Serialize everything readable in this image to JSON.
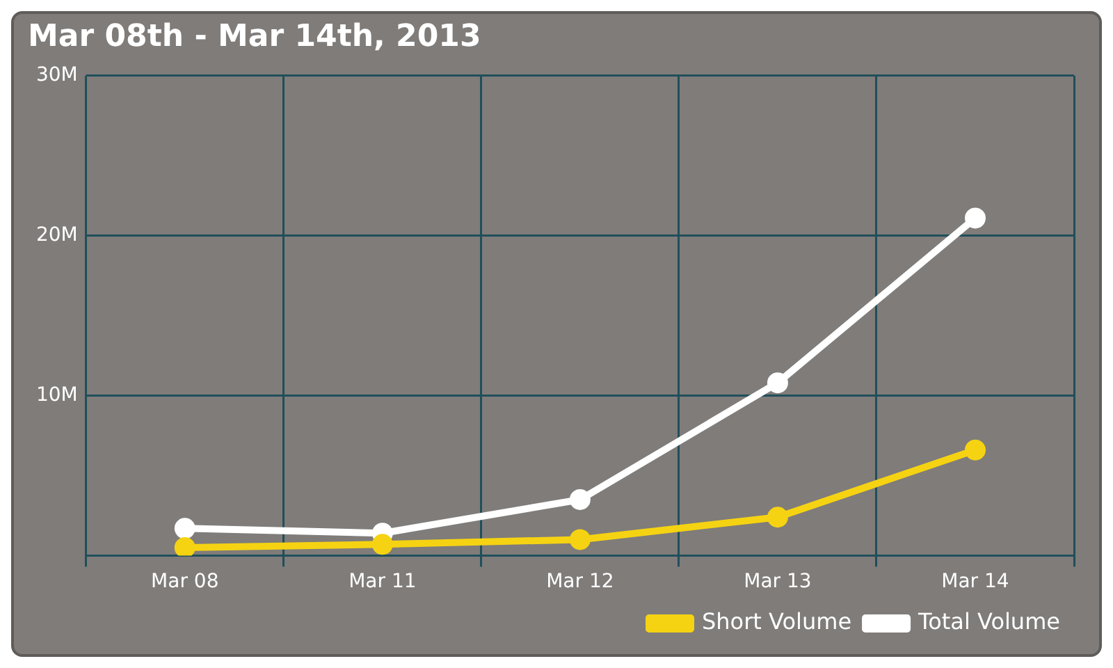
{
  "chart_data": {
    "type": "line",
    "title": "Mar 08th - Mar 14th, 2013",
    "categories": [
      "Mar 08",
      "Mar 11",
      "Mar 12",
      "Mar 13",
      "Mar 14"
    ],
    "series": [
      {
        "name": "Short Volume",
        "color": "#f5d312",
        "values": [
          500000,
          700000,
          1000000,
          2400000,
          6600000
        ]
      },
      {
        "name": "Total Volume",
        "color": "#ffffff",
        "values": [
          1700000,
          1400000,
          3500000,
          10800000,
          21100000
        ]
      }
    ],
    "ylim": [
      0,
      30000000
    ],
    "yticks": [
      {
        "value": 0,
        "label": null
      },
      {
        "value": 10000000,
        "label": "10M"
      },
      {
        "value": 20000000,
        "label": "20M"
      },
      {
        "value": 30000000,
        "label": "30M"
      }
    ],
    "grid": true,
    "legend": "bottom right",
    "marker": "circle",
    "line_style": "solid"
  }
}
